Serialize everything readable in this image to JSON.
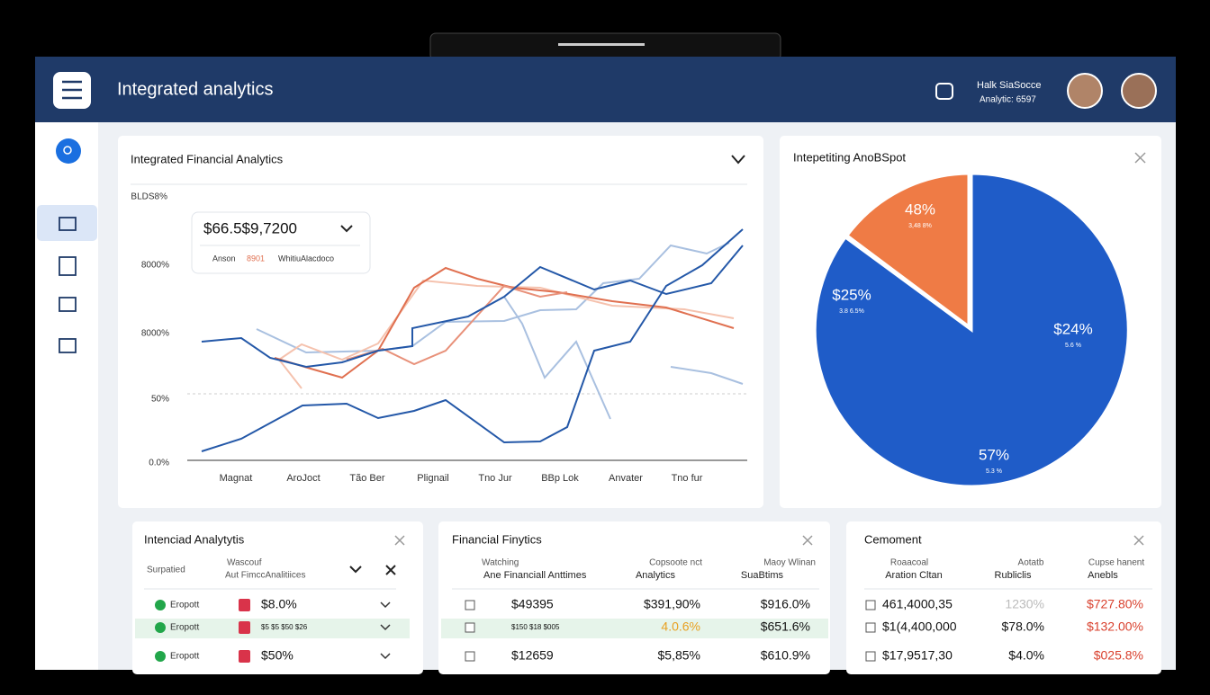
{
  "header": {
    "title": "Integrated analytics",
    "user_name": "Halk SiaSocce",
    "user_meta": "Analytic: 6597"
  },
  "line_card": {
    "title": "Integrated Financial Analytics",
    "y_labels": [
      "BLDS8%",
      "8000%",
      "8000%",
      "50%",
      "0.0%"
    ],
    "x_labels": [
      "Magnat",
      "AroJoct",
      "Tão Ber",
      "Plignail",
      "Tno Jur",
      "BBp Lok",
      "Anvater",
      "Tno fur"
    ],
    "tooltip": {
      "value": "$66.5$9,7200",
      "legend": [
        "Anson",
        "8901",
        "WhitiuAlacdoco"
      ]
    }
  },
  "pie_card": {
    "title": "Intepetiting AnoBSpot",
    "labels": [
      {
        "value": "48%",
        "sub": "3,48 8%"
      },
      {
        "value": "$25%",
        "sub": "3.8 6.5%"
      },
      {
        "value": "$24%",
        "sub": "5.6 %"
      },
      {
        "value": "57%",
        "sub": "5.3 %"
      }
    ]
  },
  "tables": [
    {
      "title": "Intenciad Analytytis",
      "headers": [
        "Surpatied",
        "Wascouf",
        "Aut FimccAnalitiices"
      ],
      "rows": [
        [
          "Eropott",
          "$8.0%"
        ],
        [
          "Eropott",
          "$5 $5 $50 $26"
        ],
        [
          "Eropott",
          "$50%"
        ]
      ]
    },
    {
      "title": "Financial Finytics",
      "headers": [
        "Watching",
        "Ane Financiall Anttimes",
        "Copsoote nct",
        "Analytics",
        "Maoy Wlinan",
        "SuaBtims"
      ],
      "rows": [
        [
          "$49395",
          "$391,90%",
          "$916.0%"
        ],
        [
          "$150 $18 $005",
          "4.0.6%",
          "$651.6%"
        ],
        [
          "$12659",
          "$5,85%",
          "$610.9%"
        ]
      ]
    },
    {
      "title": "Cemoment",
      "headers": [
        "Roaacoal",
        "Aration Cltan",
        "Aotatb",
        "Rubliclis",
        "Cupse hanent",
        "Anebls"
      ],
      "rows": [
        [
          "461,4000,35",
          "1230%",
          "$727.80%"
        ],
        [
          "$1(4,400,000",
          "$78.0%",
          "$132.00%"
        ],
        [
          "$17,9517,30",
          "$4.0%",
          "$025.8%"
        ]
      ]
    }
  ]
}
